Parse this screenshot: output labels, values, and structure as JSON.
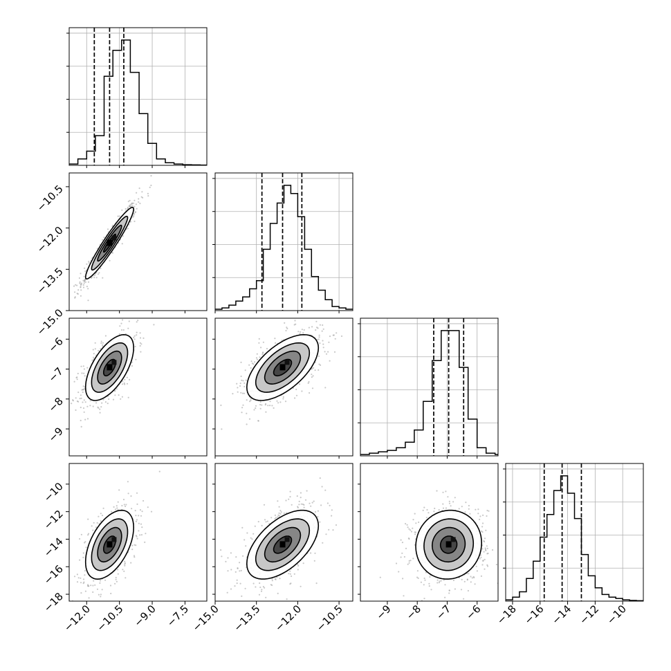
{
  "chart_data": {
    "type": "corner",
    "title": "",
    "grid": true,
    "params": [
      {
        "range": [
          -12.8,
          -6.5
        ],
        "ticks": [
          -12.0,
          -10.5,
          -9.0,
          -7.5
        ],
        "tick_labels": [
          "−12.0",
          "−10.5",
          "−9.0",
          "−7.5"
        ],
        "quantiles": [
          -11.65,
          -10.95,
          -10.3
        ],
        "hist_edges": [
          -12.8,
          -12.4,
          -12.0,
          -11.6,
          -11.2,
          -10.8,
          -10.4,
          -10.0,
          -9.6,
          -9.2,
          -8.8,
          -8.4,
          -8.0,
          -7.6,
          -7.2,
          -6.8,
          -6.5
        ],
        "hist_counts": [
          0.01,
          0.05,
          0.11,
          0.23,
          0.69,
          0.89,
          0.97,
          0.72,
          0.4,
          0.17,
          0.05,
          0.02,
          0.01,
          0.005,
          0.003,
          0.002
        ]
      },
      {
        "range": [
          -15.0,
          -10.0
        ],
        "ticks": [
          -15.0,
          -13.5,
          -12.0,
          -10.5
        ],
        "tick_labels": [
          "−15.0",
          "−13.5",
          "−12.0",
          "−10.5"
        ],
        "quantiles": [
          -13.3,
          -12.55,
          -11.85
        ],
        "hist_edges": [
          -15.0,
          -14.75,
          -14.5,
          -14.25,
          -14.0,
          -13.75,
          -13.5,
          -13.25,
          -13.0,
          -12.75,
          -12.5,
          -12.25,
          -12.0,
          -11.75,
          -11.5,
          -11.25,
          -11.0,
          -10.75,
          -10.5,
          -10.25,
          -10.0
        ],
        "hist_counts": [
          0.01,
          0.02,
          0.04,
          0.07,
          0.1,
          0.16,
          0.22,
          0.45,
          0.64,
          0.79,
          0.92,
          0.86,
          0.69,
          0.45,
          0.25,
          0.15,
          0.08,
          0.03,
          0.02,
          0.01
        ]
      },
      {
        "range": [
          -9.9,
          -5.3
        ],
        "ticks": [
          -9,
          -8,
          -7,
          -6
        ],
        "tick_labels": [
          "−9",
          "−8",
          "−7",
          "−6"
        ],
        "quantiles": [
          -7.45,
          -6.95,
          -6.45
        ],
        "hist_edges": [
          -9.9,
          -9.6,
          -9.3,
          -9.0,
          -8.7,
          -8.4,
          -8.1,
          -7.8,
          -7.5,
          -7.2,
          -6.9,
          -6.6,
          -6.3,
          -6.0,
          -5.7,
          -5.4,
          -5.3
        ],
        "hist_counts": [
          0.01,
          0.02,
          0.03,
          0.04,
          0.06,
          0.1,
          0.19,
          0.4,
          0.7,
          0.92,
          0.92,
          0.65,
          0.27,
          0.06,
          0.02,
          0.01
        ]
      },
      {
        "range": [
          -18.5,
          -8.5
        ],
        "ticks": [
          -18,
          -16,
          -14,
          -12,
          -10
        ],
        "tick_labels": [
          "−18",
          "−16",
          "−14",
          "−12",
          "−10"
        ],
        "quantiles": [
          -15.7,
          -14.4,
          -13.0
        ],
        "hist_edges": [
          -18.5,
          -18.0,
          -17.5,
          -17.0,
          -16.5,
          -16.0,
          -15.5,
          -15.0,
          -14.5,
          -14.0,
          -13.5,
          -13.0,
          -12.5,
          -12.0,
          -11.5,
          -11.0,
          -10.5,
          -10.0,
          -9.5,
          -9.0,
          -8.5
        ],
        "hist_counts": [
          0.01,
          0.03,
          0.07,
          0.17,
          0.3,
          0.48,
          0.65,
          0.83,
          0.94,
          0.81,
          0.62,
          0.35,
          0.19,
          0.1,
          0.05,
          0.03,
          0.02,
          0.01,
          0.005,
          0.003
        ]
      }
    ],
    "pairs": [
      {
        "x": 0,
        "y": 1,
        "mean": [
          -10.95,
          -12.55
        ],
        "sd": [
          0.55,
          0.65
        ],
        "rho": 0.95
      },
      {
        "x": 0,
        "y": 2,
        "mean": [
          -10.95,
          -6.95
        ],
        "sd": [
          0.55,
          0.55
        ],
        "rho": 0.6
      },
      {
        "x": 1,
        "y": 2,
        "mean": [
          -12.55,
          -6.95
        ],
        "sd": [
          0.65,
          0.55
        ],
        "rho": 0.6
      },
      {
        "x": 0,
        "y": 3,
        "mean": [
          -10.95,
          -14.4
        ],
        "sd": [
          0.55,
          1.25
        ],
        "rho": 0.5
      },
      {
        "x": 1,
        "y": 3,
        "mean": [
          -12.55,
          -14.4
        ],
        "sd": [
          0.65,
          1.25
        ],
        "rho": 0.55
      },
      {
        "x": 2,
        "y": 3,
        "mean": [
          -6.95,
          -14.4
        ],
        "sd": [
          0.55,
          1.25
        ],
        "rho": 0.05
      }
    ],
    "contour_levels_sigma": [
      0.5,
      1.0,
      1.5,
      2.0
    ],
    "colors": {
      "hist": "#000000",
      "points": "#9a9a9a",
      "grid": "#b0b0b0",
      "frame": "#000000"
    }
  }
}
